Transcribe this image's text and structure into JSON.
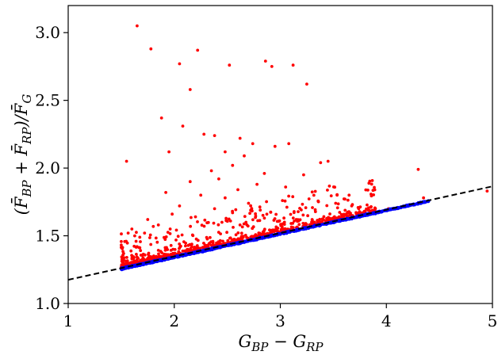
{
  "chart_data": {
    "type": "scatter",
    "title": "",
    "xlabel": "G_BP − G_RP",
    "ylabel": "(F̄_BP + F̄_RP)/F̄_G",
    "xlim": [
      1,
      5
    ],
    "ylim": [
      1.0,
      3.2
    ],
    "x_ticks": [
      1,
      2,
      3,
      4,
      5
    ],
    "x_tick_labels": [
      "1",
      "2",
      "3",
      "4",
      "5"
    ],
    "y_ticks": [
      1.0,
      1.5,
      2.0,
      2.5,
      3.0
    ],
    "y_tick_labels": [
      "1.0",
      "1.5",
      "2.0",
      "2.5",
      "3.0"
    ],
    "grid": false,
    "legend": "none",
    "colors": {
      "flagged": "#ff0000",
      "clean": "#0000ff",
      "fit": "#000000"
    },
    "fit_line": {
      "style": "dashed",
      "points": [
        [
          1.0,
          1.175
        ],
        [
          5.0,
          1.865
        ]
      ]
    },
    "series": [
      {
        "color": "#ff0000",
        "points": [
          [
            1.65,
            3.05
          ],
          [
            1.78,
            2.88
          ],
          [
            2.05,
            2.77
          ],
          [
            2.22,
            2.87
          ],
          [
            2.52,
            2.76
          ],
          [
            2.86,
            2.79
          ],
          [
            3.12,
            2.76
          ],
          [
            3.25,
            2.62
          ],
          [
            2.92,
            2.75
          ],
          [
            2.15,
            2.58
          ],
          [
            1.88,
            2.37
          ],
          [
            2.08,
            2.31
          ],
          [
            2.28,
            2.25
          ],
          [
            2.38,
            2.24
          ],
          [
            2.62,
            2.22
          ],
          [
            2.74,
            2.18
          ],
          [
            2.95,
            2.16
          ],
          [
            3.08,
            2.18
          ],
          [
            2.48,
            2.12
          ],
          [
            2.66,
            2.09
          ],
          [
            1.95,
            2.12
          ],
          [
            1.55,
            2.05
          ],
          [
            3.38,
            2.04
          ],
          [
            3.45,
            2.05
          ],
          [
            3.22,
            1.95
          ],
          [
            4.3,
            1.99
          ],
          [
            4.35,
            1.78
          ],
          [
            4.95,
            1.83
          ],
          [
            2.55,
            2.02
          ],
          [
            2.35,
            1.98
          ],
          [
            2.85,
            1.96
          ],
          [
            2.42,
            1.92
          ],
          [
            2.15,
            1.9
          ],
          [
            2.78,
            1.88
          ],
          [
            3.05,
            1.86
          ],
          [
            2.6,
            1.84
          ],
          [
            1.92,
            1.82
          ],
          [
            2.25,
            1.8
          ],
          [
            2.48,
            1.78
          ],
          [
            3.02,
            1.76
          ],
          [
            2.7,
            1.74
          ],
          [
            2.05,
            1.72
          ],
          [
            2.38,
            1.7
          ],
          [
            1.98,
            1.66
          ],
          [
            2.55,
            1.67
          ],
          [
            2.2,
            1.64
          ],
          [
            2.85,
            1.63
          ],
          [
            1.75,
            1.62
          ],
          [
            3.15,
            1.62
          ],
          [
            2.45,
            1.6
          ],
          [
            1.85,
            1.58
          ],
          [
            2.62,
            1.58
          ],
          [
            3.3,
            1.62
          ],
          [
            4.02,
            1.7
          ],
          [
            1.6,
            1.55
          ],
          [
            1.72,
            1.52
          ]
        ]
      },
      {
        "color": "#0000ff",
        "points": "dense band along the dashed fit line"
      }
    ]
  }
}
